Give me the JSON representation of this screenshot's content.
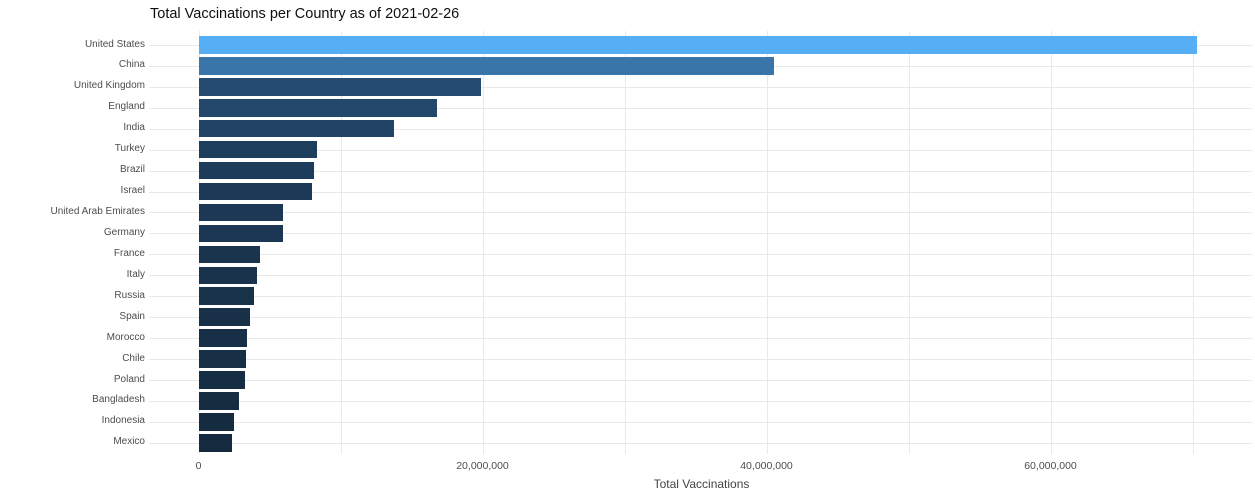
{
  "chart_data": {
    "type": "bar",
    "orientation": "horizontal",
    "title": "Total Vaccinations per Country as of 2021-02-26",
    "xlabel": "Total Vaccinations",
    "categories": [
      "United States",
      "China",
      "United Kingdom",
      "England",
      "India",
      "Turkey",
      "Brazil",
      "Israel",
      "United Arab Emirates",
      "Germany",
      "France",
      "Italy",
      "Russia",
      "Spain",
      "Morocco",
      "Chile",
      "Poland",
      "Bangladesh",
      "Indonesia",
      "Mexico"
    ],
    "values": [
      70300000,
      40500000,
      19900000,
      16800000,
      13800000,
      8340000,
      8150000,
      7990000,
      5980000,
      5950000,
      4330000,
      4120000,
      3910000,
      3630000,
      3420000,
      3350000,
      3270000,
      2870000,
      2520000,
      2360000
    ],
    "bar_colors": [
      "#56aef4",
      "#3a75a9",
      "#264b71",
      "#24476c",
      "#214466",
      "#1e3e5e",
      "#1d3c5b",
      "#1c3a58",
      "#1c3854",
      "#1b3753",
      "#1a344e",
      "#19334c",
      "#18324a",
      "#183048",
      "#172f46",
      "#172f45",
      "#162e44",
      "#162c41",
      "#152b40",
      "#152a3e"
    ],
    "x_axis": {
      "tick_values": [
        0,
        20000000,
        40000000,
        60000000
      ],
      "tick_labels": [
        "0",
        "20,000,000",
        "40,000,000",
        "60,000,000"
      ],
      "minor_gridline_step": 10000000,
      "gridline_max": 70000000,
      "range": [
        -3500000,
        74500000
      ]
    },
    "grid": true,
    "legend_position": "none",
    "background_color": "#ffffff",
    "gridline_color": "#e9e9e9",
    "axis_text_color": "#4d4d4d",
    "title_color": "#0f0f0f"
  }
}
